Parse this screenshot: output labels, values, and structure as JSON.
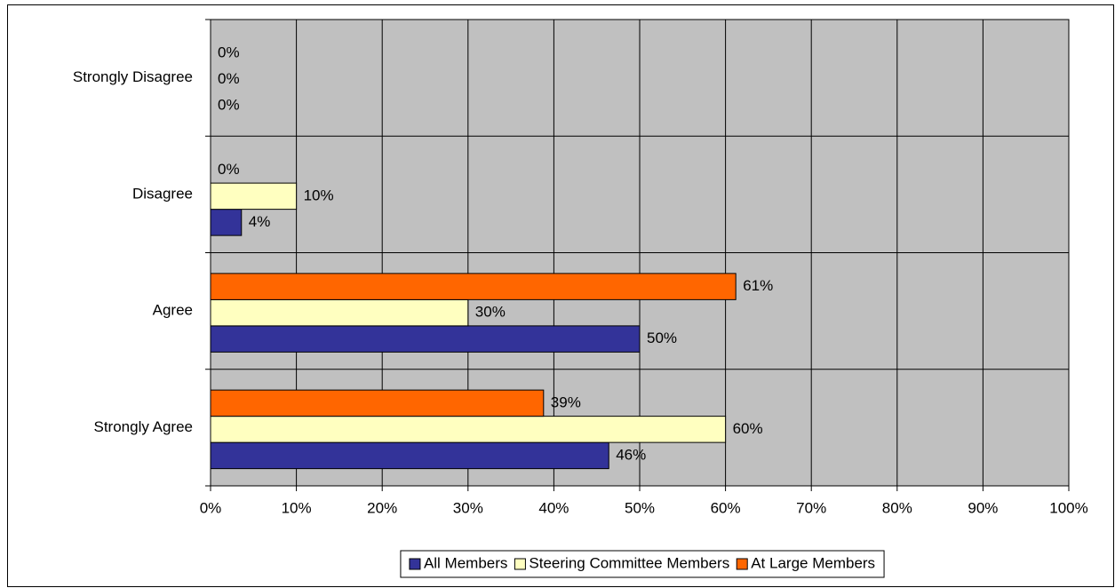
{
  "chart_data": {
    "type": "bar",
    "orientation": "horizontal",
    "categories": [
      "Strongly Disagree",
      "Disagree",
      "Agree",
      "Strongly Agree"
    ],
    "series": [
      {
        "name": "All Members",
        "color": "#333399",
        "values": [
          0,
          3.6,
          50,
          46.4
        ],
        "value_labels": [
          "0%",
          "4%",
          "50%",
          "46%"
        ]
      },
      {
        "name": "Steering Committee Members",
        "color": "#FFFFC0",
        "values": [
          0,
          10,
          30,
          60
        ],
        "value_labels": [
          "0%",
          "10%",
          "30%",
          "60%"
        ]
      },
      {
        "name": "At Large Members",
        "color": "#FF6600",
        "values": [
          0,
          0,
          61.2,
          38.8
        ],
        "value_labels": [
          "0%",
          "0%",
          "61%",
          "39%"
        ]
      }
    ],
    "xlim": [
      0,
      100
    ],
    "xticks": [
      {
        "value": 0,
        "label": "0%"
      },
      {
        "value": 10,
        "label": "10%"
      },
      {
        "value": 20,
        "label": "20%"
      },
      {
        "value": 30,
        "label": "30%"
      },
      {
        "value": 40,
        "label": "40%"
      },
      {
        "value": 50,
        "label": "50%"
      },
      {
        "value": 60,
        "label": "60%"
      },
      {
        "value": 70,
        "label": "70%"
      },
      {
        "value": 80,
        "label": "80%"
      },
      {
        "value": 90,
        "label": "90%"
      },
      {
        "value": 100,
        "label": "100%"
      }
    ],
    "grid": true,
    "legend": "bottom",
    "background": "#C0C0C0"
  }
}
